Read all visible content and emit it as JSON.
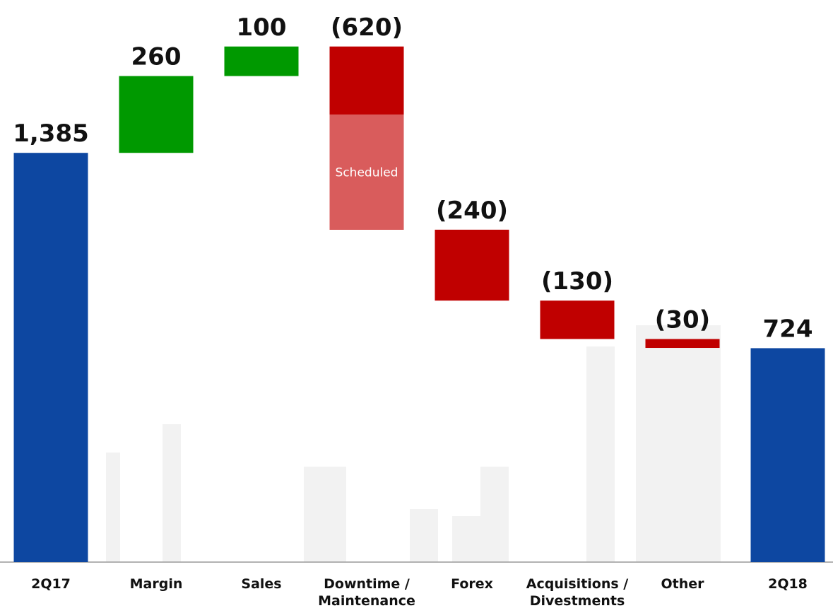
{
  "chart_data": {
    "type": "waterfall",
    "categories": [
      "2Q17",
      "Margin",
      "Sales",
      "Downtime / Maintenance",
      "Forex",
      "Acquisitions / Divestments",
      "Other",
      "2Q18"
    ],
    "values": [
      1385,
      260,
      100,
      -620,
      -240,
      -130,
      -30,
      724
    ],
    "value_labels": [
      "1,385",
      "260",
      "100",
      "(620)",
      "(240)",
      "(130)",
      "(30)",
      "724"
    ],
    "measures": [
      "total",
      "relative",
      "relative",
      "relative",
      "relative",
      "relative",
      "relative",
      "total"
    ],
    "colors": {
      "total": "#0d47a1",
      "increase": "#009900",
      "decrease": "#c00000"
    },
    "scheduled": {
      "category": 3,
      "label": "Scheduled",
      "value": -390,
      "color": "#d95c5c"
    },
    "ylim": [
      0,
      1900
    ]
  }
}
